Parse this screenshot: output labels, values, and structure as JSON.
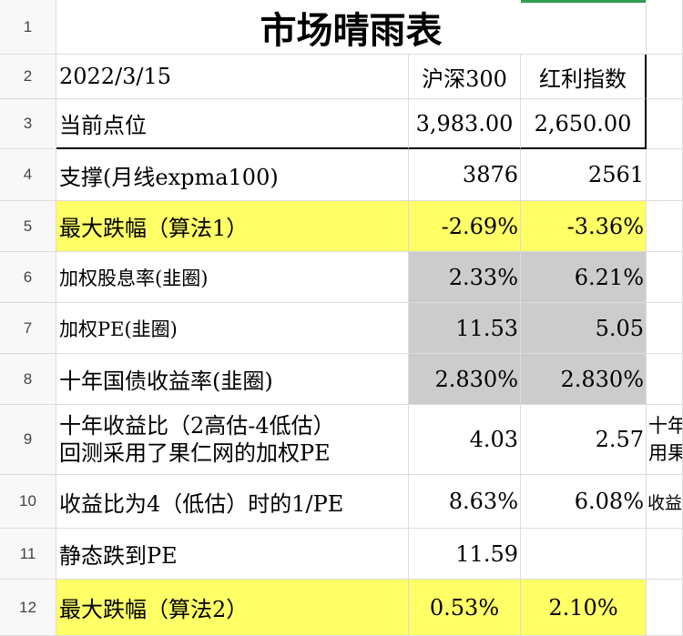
{
  "sheet": {
    "row_numbers": [
      "1",
      "2",
      "3",
      "4",
      "5",
      "6",
      "7",
      "8",
      "9",
      "10",
      "11",
      "12"
    ],
    "title": "市场晴雨表",
    "header": {
      "date": "2022/3/15",
      "col1": "沪深300",
      "col2": "红利指数"
    },
    "rows": [
      {
        "label": "当前点位",
        "v1": "3,983.00",
        "v2": "2,650.00",
        "extra": ""
      },
      {
        "label": "支撑(月线expma100)",
        "v1": "3876",
        "v2": "2561",
        "extra": ""
      },
      {
        "label": "最大跌幅（算法1）",
        "v1": "-2.69%",
        "v2": "-3.36%",
        "extra": "",
        "highlight": "yellow"
      },
      {
        "label": "加权股息率(韭圈)",
        "v1": "2.33%",
        "v2": "6.21%",
        "extra": "",
        "highlight": "gray"
      },
      {
        "label": "加权PE(韭圈)",
        "v1": "11.53",
        "v2": "5.05",
        "extra": "",
        "highlight": "gray"
      },
      {
        "label": "十年国债收益率(韭圈)",
        "v1": "2.830%",
        "v2": "2.830%",
        "extra": "",
        "highlight": "gray"
      },
      {
        "label_line1": "十年收益比（2高估-4低估）",
        "label_line2": "回测采用了果仁网的加权PE",
        "v1": "4.03",
        "v2": "2.57",
        "extra_line1": "十年",
        "extra_line2": "用果"
      },
      {
        "label": "收益比为4（低估）时的1/PE",
        "v1": "8.63%",
        "v2": "6.08%",
        "extra": "收益"
      },
      {
        "label": "静态跌到PE",
        "v1": "11.59",
        "v2": "",
        "extra": ""
      },
      {
        "label": "最大跌幅（算法2）",
        "v1": "0.53%",
        "v2": "2.10%",
        "extra": "",
        "highlight": "yellow"
      }
    ]
  },
  "colors": {
    "yellow": "#ffff66",
    "gray": "#cccccc",
    "selection": "#2e9e4f"
  }
}
